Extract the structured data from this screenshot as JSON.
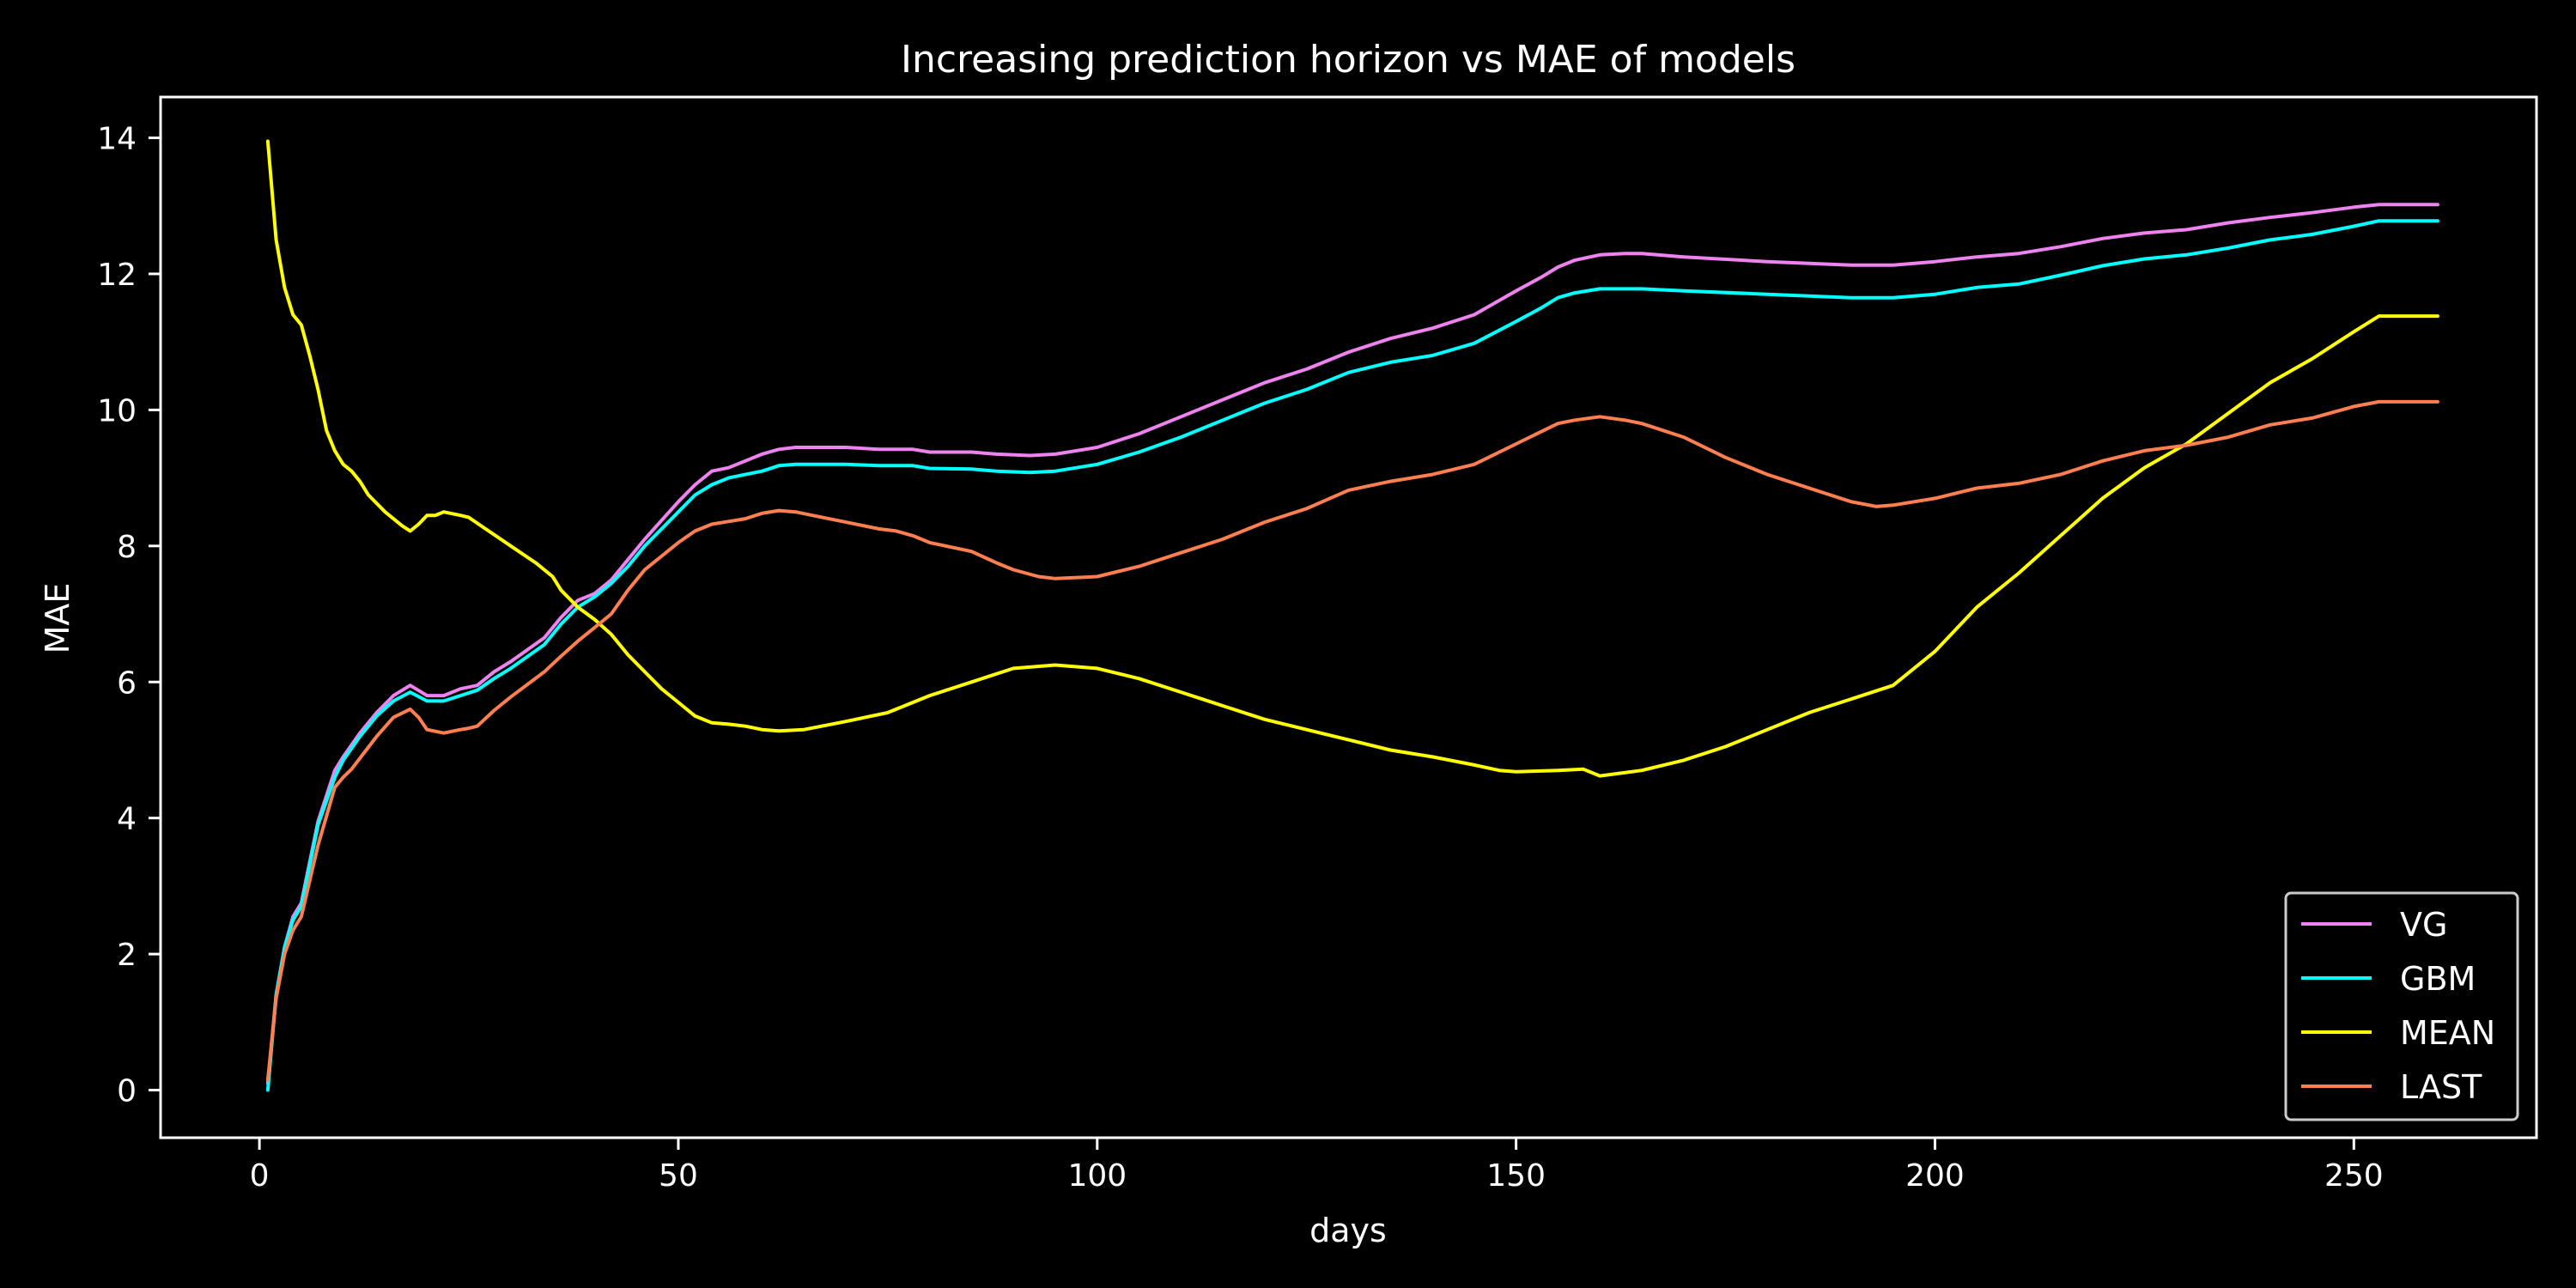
{
  "chart_data": {
    "type": "line",
    "title": "Increasing prediction horizon vs MAE of models",
    "xlabel": "days",
    "ylabel": "MAE",
    "xlim": [
      -11.8,
      271.8
    ],
    "ylim": [
      -0.7,
      14.6
    ],
    "xticks": [
      0,
      50,
      100,
      150,
      200,
      250
    ],
    "yticks": [
      0,
      2,
      4,
      6,
      8,
      10,
      12,
      14
    ],
    "grid": false,
    "legend_position": "bottom-right",
    "series": [
      {
        "name": "VG",
        "color": "#ee82ee",
        "x": [
          1,
          2,
          3,
          4,
          5,
          7,
          9,
          10,
          12,
          14,
          16,
          18,
          20,
          22,
          24,
          26,
          28,
          30,
          34,
          36,
          38,
          40,
          42,
          44,
          46,
          50,
          52,
          54,
          56,
          58,
          60,
          62,
          64,
          66,
          70,
          74,
          78,
          80,
          85,
          88,
          92,
          95,
          100,
          105,
          110,
          115,
          118,
          120,
          125,
          130,
          135,
          140,
          145,
          150,
          153,
          155,
          157,
          160,
          163,
          165,
          170,
          180,
          190,
          195,
          200,
          205,
          210,
          215,
          220,
          225,
          230,
          235,
          240,
          245,
          250,
          253,
          255,
          260
        ],
        "y": [
          0.1,
          1.4,
          2.1,
          2.55,
          2.75,
          3.95,
          4.7,
          4.9,
          5.25,
          5.55,
          5.8,
          5.95,
          5.8,
          5.8,
          5.9,
          5.95,
          6.15,
          6.3,
          6.65,
          6.95,
          7.2,
          7.3,
          7.5,
          7.8,
          8.1,
          8.65,
          8.9,
          9.1,
          9.15,
          9.25,
          9.35,
          9.42,
          9.45,
          9.45,
          9.45,
          9.42,
          9.42,
          9.38,
          9.38,
          9.35,
          9.33,
          9.35,
          9.45,
          9.65,
          9.9,
          10.15,
          10.3,
          10.4,
          10.6,
          10.85,
          11.05,
          11.2,
          11.4,
          11.75,
          11.95,
          12.1,
          12.2,
          12.28,
          12.3,
          12.3,
          12.25,
          12.18,
          12.13,
          12.13,
          12.18,
          12.25,
          12.3,
          12.4,
          12.52,
          12.6,
          12.65,
          12.75,
          12.83,
          12.9,
          12.98,
          13.02,
          13.02,
          13.02
        ]
      },
      {
        "name": "GBM",
        "color": "#00ffff",
        "x": [
          1,
          2,
          3,
          4,
          5,
          7,
          9,
          10,
          12,
          14,
          16,
          18,
          20,
          22,
          24,
          26,
          28,
          30,
          34,
          36,
          38,
          40,
          42,
          44,
          46,
          50,
          52,
          54,
          56,
          58,
          60,
          62,
          64,
          66,
          70,
          74,
          78,
          80,
          85,
          88,
          92,
          95,
          100,
          105,
          110,
          115,
          118,
          120,
          125,
          130,
          135,
          140,
          145,
          150,
          153,
          155,
          157,
          160,
          163,
          165,
          170,
          180,
          190,
          195,
          200,
          205,
          210,
          215,
          220,
          225,
          230,
          235,
          240,
          245,
          250,
          253,
          255,
          260
        ],
        "y": [
          0.0,
          1.4,
          2.1,
          2.5,
          2.7,
          3.9,
          4.6,
          4.85,
          5.2,
          5.5,
          5.72,
          5.85,
          5.72,
          5.72,
          5.8,
          5.88,
          6.05,
          6.2,
          6.55,
          6.85,
          7.1,
          7.25,
          7.45,
          7.7,
          8.0,
          8.5,
          8.75,
          8.9,
          9.0,
          9.05,
          9.1,
          9.18,
          9.2,
          9.2,
          9.2,
          9.18,
          9.18,
          9.14,
          9.13,
          9.1,
          9.08,
          9.1,
          9.2,
          9.38,
          9.6,
          9.85,
          10.0,
          10.1,
          10.3,
          10.55,
          10.7,
          10.8,
          10.98,
          11.3,
          11.5,
          11.65,
          11.72,
          11.78,
          11.78,
          11.78,
          11.75,
          11.7,
          11.65,
          11.65,
          11.7,
          11.8,
          11.85,
          11.98,
          12.12,
          12.22,
          12.28,
          12.38,
          12.5,
          12.58,
          12.7,
          12.78,
          12.78,
          12.78
        ]
      },
      {
        "name": "MEAN",
        "color": "#ffff00",
        "x": [
          1,
          2,
          3,
          4,
          5,
          6,
          7,
          8,
          9,
          10,
          11,
          12,
          13,
          15,
          17,
          18,
          19,
          20,
          21,
          22,
          24,
          25,
          27,
          30,
          33,
          35,
          36,
          38,
          40,
          42,
          44,
          46,
          48,
          50,
          52,
          54,
          56,
          58,
          60,
          62,
          65,
          70,
          75,
          80,
          85,
          90,
          95,
          100,
          105,
          110,
          115,
          120,
          125,
          130,
          135,
          140,
          145,
          148,
          150,
          155,
          158,
          160,
          165,
          170,
          175,
          180,
          185,
          190,
          195,
          200,
          205,
          210,
          215,
          220,
          225,
          230,
          235,
          240,
          245,
          250,
          253,
          255,
          260
        ],
        "y": [
          13.95,
          12.5,
          11.8,
          11.4,
          11.25,
          10.8,
          10.3,
          9.7,
          9.4,
          9.2,
          9.1,
          8.95,
          8.75,
          8.5,
          8.3,
          8.22,
          8.32,
          8.45,
          8.45,
          8.5,
          8.45,
          8.42,
          8.25,
          8.0,
          7.75,
          7.55,
          7.35,
          7.1,
          6.92,
          6.7,
          6.4,
          6.15,
          5.9,
          5.7,
          5.5,
          5.4,
          5.38,
          5.35,
          5.3,
          5.28,
          5.3,
          5.42,
          5.55,
          5.8,
          6.0,
          6.2,
          6.25,
          6.2,
          6.05,
          5.85,
          5.65,
          5.45,
          5.3,
          5.15,
          5.0,
          4.9,
          4.78,
          4.7,
          4.68,
          4.7,
          4.72,
          4.62,
          4.7,
          4.85,
          5.05,
          5.3,
          5.55,
          5.75,
          5.95,
          6.45,
          7.1,
          7.6,
          8.15,
          8.7,
          9.15,
          9.5,
          9.95,
          10.4,
          10.75,
          11.15,
          11.38,
          11.38,
          11.38
        ]
      },
      {
        "name": "LAST",
        "color": "#ff7f50",
        "x": [
          1,
          2,
          3,
          4,
          5,
          7,
          9,
          10,
          11,
          12,
          14,
          16,
          18,
          19,
          20,
          22,
          24,
          25,
          26,
          28,
          30,
          34,
          36,
          38,
          40,
          42,
          44,
          46,
          50,
          52,
          54,
          56,
          58,
          60,
          62,
          64,
          66,
          70,
          74,
          76,
          78,
          80,
          85,
          88,
          90,
          93,
          95,
          100,
          105,
          110,
          115,
          118,
          120,
          125,
          130,
          135,
          140,
          145,
          150,
          153,
          155,
          157,
          160,
          163,
          165,
          170,
          175,
          180,
          185,
          190,
          193,
          195,
          200,
          205,
          210,
          215,
          220,
          225,
          230,
          235,
          240,
          245,
          250,
          253,
          255,
          260
        ],
        "y": [
          0.15,
          1.35,
          2.0,
          2.35,
          2.55,
          3.6,
          4.45,
          4.6,
          4.72,
          4.88,
          5.2,
          5.48,
          5.6,
          5.48,
          5.3,
          5.25,
          5.3,
          5.32,
          5.35,
          5.58,
          5.78,
          6.15,
          6.38,
          6.6,
          6.8,
          7.0,
          7.35,
          7.65,
          8.05,
          8.22,
          8.32,
          8.36,
          8.4,
          8.48,
          8.52,
          8.5,
          8.45,
          8.35,
          8.25,
          8.22,
          8.15,
          8.05,
          7.92,
          7.75,
          7.65,
          7.55,
          7.52,
          7.55,
          7.7,
          7.9,
          8.1,
          8.25,
          8.35,
          8.55,
          8.82,
          8.95,
          9.05,
          9.2,
          9.5,
          9.68,
          9.8,
          9.85,
          9.9,
          9.85,
          9.8,
          9.6,
          9.3,
          9.05,
          8.85,
          8.65,
          8.58,
          8.6,
          8.7,
          8.85,
          8.92,
          9.05,
          9.25,
          9.4,
          9.48,
          9.6,
          9.78,
          9.88,
          10.05,
          10.12,
          10.12,
          10.12
        ]
      }
    ]
  }
}
